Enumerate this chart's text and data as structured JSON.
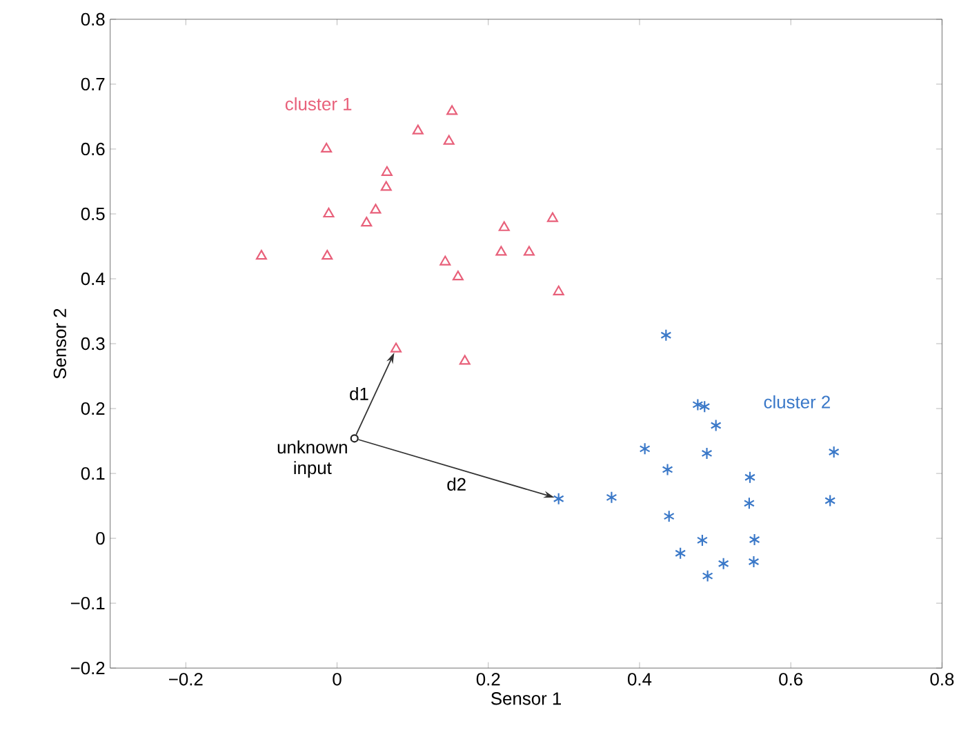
{
  "chart_data": {
    "type": "scatter",
    "xlabel": "Sensor 1",
    "ylabel": "Sensor 2",
    "xlim": [
      -0.3,
      0.8
    ],
    "ylim": [
      -0.2,
      0.8
    ],
    "xticks": [
      {
        "value": -0.2,
        "label": "−0.2"
      },
      0,
      0.2,
      0.4,
      0.6,
      0.8
    ],
    "yticks": [
      {
        "value": -0.2,
        "label": "−0.2"
      },
      {
        "value": -0.1,
        "label": "−0.1"
      },
      0,
      0.1,
      0.2,
      0.3,
      0.4,
      0.5,
      0.6,
      0.7,
      0.8
    ],
    "grid": false,
    "legend": false,
    "series": [
      {
        "name": "cluster 1",
        "color": "#e8607a",
        "marker": "triangle",
        "x": [
          -0.1,
          -0.014,
          -0.011,
          -0.013,
          0.066,
          0.065,
          0.051,
          0.039,
          0.107,
          0.152,
          0.148,
          0.143,
          0.16,
          0.221,
          0.217,
          0.254,
          0.285,
          0.293,
          0.078,
          0.169
        ],
        "values": [
          0.435,
          0.6,
          0.5,
          0.435,
          0.564,
          0.541,
          0.506,
          0.486,
          0.628,
          0.658,
          0.612,
          0.426,
          0.403,
          0.479,
          0.441,
          0.441,
          0.493,
          0.38,
          0.292,
          0.273
        ]
      },
      {
        "name": "cluster 2",
        "color": "#3a78c8",
        "marker": "cross",
        "x": [
          0.435,
          0.477,
          0.486,
          0.501,
          0.407,
          0.489,
          0.657,
          0.437,
          0.546,
          0.293,
          0.363,
          0.545,
          0.652,
          0.439,
          0.483,
          0.552,
          0.454,
          0.511,
          0.551,
          0.49
        ],
        "values": [
          0.313,
          0.206,
          0.203,
          0.174,
          0.138,
          0.131,
          0.133,
          0.106,
          0.094,
          0.061,
          0.063,
          0.054,
          0.058,
          0.034,
          -0.003,
          -0.002,
          -0.023,
          -0.039,
          -0.036,
          -0.058
        ]
      },
      {
        "color": "#222222",
        "marker": "circle",
        "x": [
          0.023
        ],
        "values": [
          0.154
        ]
      }
    ],
    "annotations": [
      {
        "text": "unknown input",
        "x": 0.023,
        "y": 0.154
      },
      "d1",
      "d2"
    ]
  }
}
